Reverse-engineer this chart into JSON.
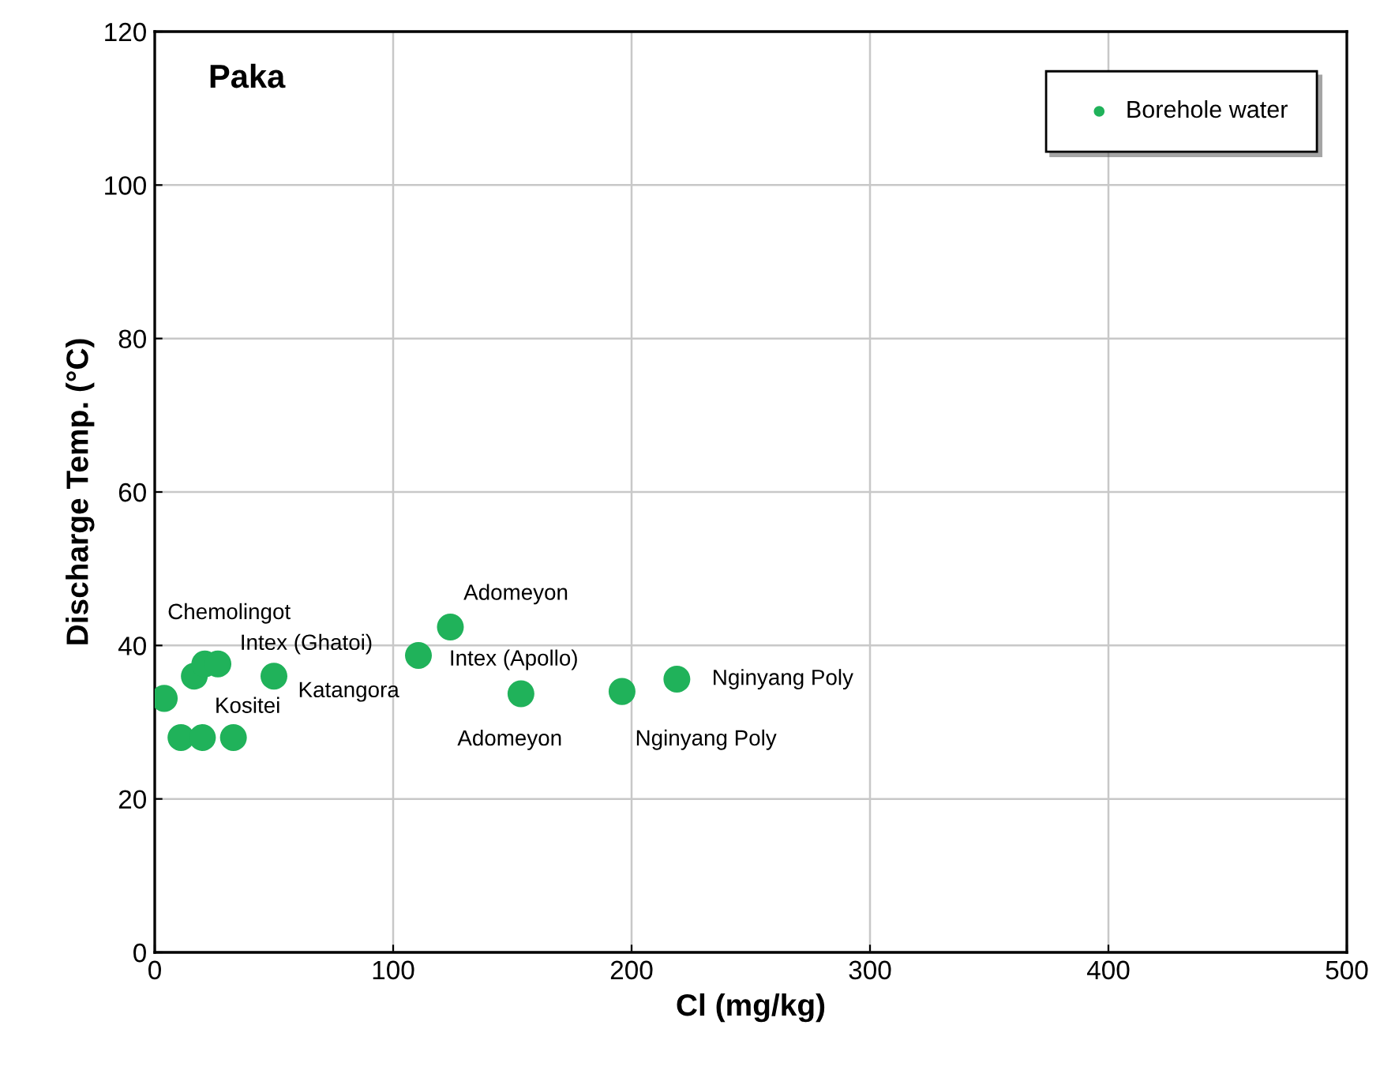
{
  "chart_data": {
    "type": "scatter",
    "title": "Paka",
    "xlabel": "Cl (mg/kg)",
    "ylabel": "Discharge Temp. (°C)",
    "series": [
      {
        "name": "Borehole water",
        "color": "#20b25a",
        "x": [
          4,
          16.6,
          21,
          26.5,
          50,
          124,
          110.6,
          153.6,
          196,
          219,
          11,
          20,
          33
        ],
        "values": [
          33.1,
          36,
          37.6,
          37.6,
          36,
          42.4,
          38.7,
          33.7,
          34,
          35.6,
          28,
          28,
          28
        ]
      }
    ],
    "annotations": [
      {
        "text": "Chemolingot",
        "x": 21,
        "y": 37.6
      },
      {
        "text": "Intex (Ghatoi)",
        "x": 26.5,
        "y": 37.6
      },
      {
        "text": "Kositei",
        "x": 4,
        "y": 33.1
      },
      {
        "text": "Katangora",
        "x": 50,
        "y": 36
      },
      {
        "text": "Adomeyon",
        "x": 124,
        "y": 42.4
      },
      {
        "text": "Intex (Apollo)",
        "x": 110.6,
        "y": 38.7
      },
      {
        "text": "Adomeyon",
        "x": 153.6,
        "y": 33.7
      },
      {
        "text": "Nginyang Poly",
        "x": 196,
        "y": 34
      },
      {
        "text": "Nginyang Poly",
        "x": 219,
        "y": 35.6
      }
    ],
    "xlim": [
      0,
      500
    ],
    "ylim": [
      0,
      120
    ],
    "xticks": [
      0,
      100,
      200,
      300,
      400,
      500
    ],
    "yticks": [
      0,
      20,
      40,
      60,
      80,
      100,
      120
    ],
    "grid": true,
    "legend": "top right",
    "marker": "circle"
  }
}
